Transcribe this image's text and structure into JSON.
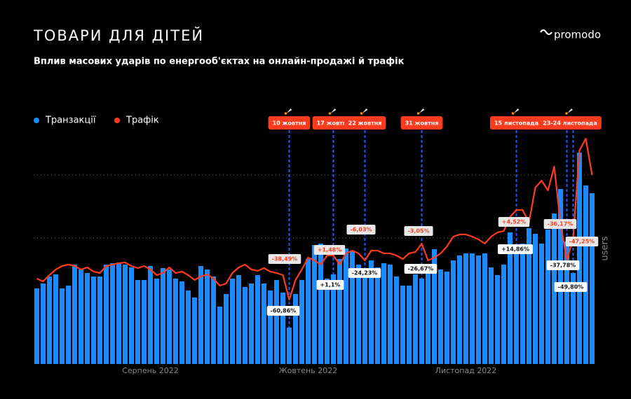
{
  "chart_data": {
    "type": "combo",
    "title": "ТОВАРИ ДЛЯ ДІТЕЙ",
    "subtitle": "Вплив масових ударів по енергооб'єктах на онлайн-продажі й трафік",
    "brand": "promodo",
    "y_label": "users",
    "ylim": [
      0,
      320
    ],
    "categories": [
      null,
      null,
      null,
      null,
      null,
      null,
      null,
      null,
      null,
      null,
      null,
      null,
      null,
      null,
      null,
      null,
      null,
      null,
      "Серпень 2022",
      null,
      null,
      null,
      null,
      null,
      null,
      null,
      null,
      null,
      null,
      null,
      null,
      null,
      null,
      null,
      null,
      null,
      null,
      null,
      null,
      null,
      null,
      null,
      null,
      "Жовтень 2022",
      null,
      null,
      null,
      null,
      null,
      null,
      null,
      null,
      null,
      null,
      null,
      null,
      null,
      null,
      null,
      null,
      null,
      null,
      null,
      null,
      null,
      null,
      null,
      null,
      "Листопад 2022",
      null,
      null,
      null,
      null,
      null,
      null,
      null,
      null,
      null,
      null,
      null,
      null,
      null,
      null,
      null,
      null,
      null,
      null,
      null,
      null
    ],
    "series": [
      {
        "name": "Транзакції",
        "type": "bar",
        "color": "#1a8cff",
        "values": [
          108,
          115,
          125,
          128,
          108,
          112,
          142,
          135,
          130,
          125,
          125,
          142,
          144,
          145,
          142,
          138,
          120,
          120,
          140,
          122,
          137,
          135,
          122,
          118,
          105,
          95,
          140,
          135,
          125,
          82,
          100,
          122,
          127,
          110,
          115,
          127,
          115,
          105,
          120,
          102,
          52,
          100,
          120,
          150,
          170,
          172,
          122,
          128,
          150,
          165,
          162,
          142,
          130,
          148,
          138,
          144,
          142,
          125,
          112,
          112,
          128,
          122,
          140,
          164,
          135,
          132,
          148,
          155,
          158,
          158,
          155,
          158,
          138,
          127,
          142,
          188,
          168,
          172,
          194,
          186,
          172,
          192,
          215,
          250,
          175,
          130,
          302,
          255,
          244
        ],
        "annotations": [
          {
            "index": 40,
            "label": "-60,86%"
          },
          {
            "index": 46,
            "label": "+1,1%"
          },
          {
            "index": 52,
            "label": "-24,23%"
          },
          {
            "index": 61,
            "label": "-26,67%"
          },
          {
            "index": 76,
            "label": "+14,86%"
          },
          {
            "index": 84,
            "label": "-37,78%"
          },
          {
            "index": 85,
            "label": "-49,80%"
          }
        ]
      },
      {
        "name": "Трафік",
        "type": "line",
        "color": "#ff3b1f",
        "values": [
          122,
          118,
          127,
          135,
          140,
          142,
          140,
          135,
          138,
          132,
          130,
          140,
          142,
          144,
          145,
          140,
          137,
          140,
          135,
          127,
          130,
          138,
          130,
          132,
          127,
          120,
          125,
          128,
          122,
          112,
          115,
          130,
          138,
          142,
          135,
          133,
          137,
          132,
          130,
          127,
          92,
          120,
          135,
          152,
          148,
          142,
          155,
          155,
          142,
          158,
          162,
          158,
          148,
          162,
          162,
          158,
          158,
          155,
          150,
          158,
          160,
          172,
          148,
          152,
          158,
          168,
          182,
          185,
          185,
          182,
          178,
          172,
          182,
          188,
          190,
          210,
          220,
          220,
          202,
          252,
          262,
          248,
          282,
          200,
          148,
          180,
          305,
          322,
          270
        ],
        "annotations": [
          {
            "index": 40,
            "label": "-38,49%"
          },
          {
            "index": 47,
            "label": "+1,48%"
          },
          {
            "index": 52,
            "label": "-6,03%"
          },
          {
            "index": 61,
            "label": "-3,05%"
          },
          {
            "index": 76,
            "label": "+4,52%"
          },
          {
            "index": 84,
            "label": "-36,17%"
          },
          {
            "index": 86,
            "label": "-47,25%"
          }
        ]
      }
    ],
    "events": [
      {
        "label": "10 жовтня",
        "indices": [
          40
        ]
      },
      {
        "label": "17 жовтня",
        "indices": [
          47
        ]
      },
      {
        "label": "22 жовтня",
        "indices": [
          52
        ]
      },
      {
        "label": "31 жовтня",
        "indices": [
          61
        ]
      },
      {
        "label": "15 листопада",
        "indices": [
          76
        ]
      },
      {
        "label": "23-24 листопада",
        "indices": [
          84,
          85
        ]
      }
    ],
    "legend": "top-left"
  }
}
